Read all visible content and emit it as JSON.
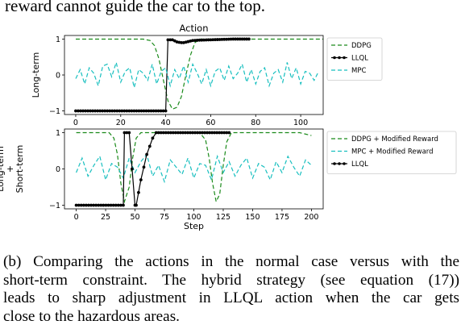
{
  "top_text": "reward cannot guide the car to the top.",
  "caption": {
    "lines": [
      "(b) Comparing the actions in the normal case versus with the",
      "short-term constraint. The hybrid strategy (see equation (17))",
      "leads to sharp adjustment in LLQL action when the car gets",
      "close to the hazardous areas."
    ]
  },
  "colors": {
    "ddpg": "#1a8a1a",
    "llql": "#000000",
    "mpc": "#17bfbf"
  },
  "chart_data": [
    {
      "type": "line",
      "title": "Action",
      "ylabel": "Long-term",
      "xlabel": "",
      "xlim": [
        -5,
        110
      ],
      "ylim": [
        -1.1,
        1.1
      ],
      "xticks": [
        0,
        20,
        40,
        60,
        80,
        100
      ],
      "yticks": [
        -1,
        0,
        1
      ],
      "legend_position": "right",
      "series": [
        {
          "name": "DDPG",
          "style": "dashed",
          "color": "#1a8a1a",
          "x": [
            0,
            30,
            33,
            35,
            37,
            39,
            41,
            43,
            45,
            47,
            49,
            51,
            53,
            55,
            110
          ],
          "y": [
            1,
            1,
            0.96,
            0.82,
            0.45,
            -0.15,
            -0.72,
            -0.95,
            -0.9,
            -0.6,
            0.0,
            0.55,
            0.9,
            1,
            1
          ]
        },
        {
          "name": "LLQL",
          "style": "dot-line",
          "color": "#000000",
          "x": [
            0,
            40,
            41,
            43,
            45,
            47,
            48,
            50,
            52,
            55,
            60,
            65,
            70,
            75,
            77
          ],
          "y": [
            -1,
            -1,
            0.98,
            0.98,
            0.92,
            0.9,
            0.9,
            0.93,
            0.96,
            0.97,
            0.98,
            0.99,
            1,
            1,
            1
          ]
        },
        {
          "name": "MPC",
          "style": "dashed",
          "color": "#17bfbf",
          "x": [
            0,
            2,
            4,
            6,
            8,
            10,
            12,
            14,
            16,
            18,
            20,
            22,
            24,
            26,
            28,
            30,
            32,
            34,
            36,
            38,
            40,
            42,
            44,
            46,
            48,
            50,
            52,
            54,
            56,
            58,
            60,
            62,
            64,
            66,
            68,
            70,
            72,
            74,
            76,
            78,
            80,
            82,
            84,
            86,
            88,
            90,
            92,
            94,
            96,
            98,
            100,
            102,
            104,
            106,
            108
          ],
          "y": [
            -0.1,
            0.15,
            -0.25,
            0.2,
            0.05,
            -0.3,
            0.25,
            0.3,
            -0.05,
            0.35,
            -0.2,
            0.1,
            0.2,
            -0.35,
            0.15,
            0.05,
            -0.15,
            0.3,
            -0.25,
            0.1,
            0.2,
            -0.3,
            0.15,
            -0.1,
            0.25,
            -0.2,
            0.3,
            0.05,
            -0.25,
            0.15,
            -0.3,
            0.1,
            0.2,
            -0.15,
            0.25,
            -0.1,
            0.05,
            0.3,
            -0.2,
            0.15,
            -0.25,
            0.1,
            0.2,
            -0.3,
            0.05,
            0.15,
            -0.2,
            0.35,
            -0.1,
            0.2,
            -0.25,
            0.1,
            0.05,
            -0.15,
            0.1
          ]
        }
      ]
    },
    {
      "type": "line",
      "ylabel": "Long-term + Short-term",
      "xlabel": "Step",
      "xlim": [
        -10,
        210
      ],
      "ylim": [
        -1.1,
        1.1
      ],
      "xticks": [
        0,
        25,
        50,
        75,
        100,
        125,
        150,
        175,
        200
      ],
      "yticks": [
        -1,
        0,
        1
      ],
      "legend_position": "right",
      "series": [
        {
          "name": "DDPG + Modified Reward",
          "style": "dashed",
          "color": "#1a8a1a",
          "x": [
            0,
            28,
            32,
            35,
            38,
            41,
            45,
            48,
            51,
            55,
            105,
            110,
            113,
            116,
            119,
            122,
            125,
            128,
            132,
            190,
            200
          ],
          "y": [
            1,
            1,
            0.85,
            0.4,
            -0.4,
            -0.9,
            -0.5,
            0.3,
            0.85,
            1,
            1,
            0.8,
            0.3,
            -0.4,
            -0.9,
            -0.7,
            0.1,
            0.75,
            1,
            1,
            0.92
          ]
        },
        {
          "name": "MPC + Modified Reward",
          "style": "dashed",
          "color": "#17bfbf",
          "x": [
            0,
            5,
            10,
            15,
            20,
            25,
            30,
            35,
            40,
            45,
            50,
            55,
            60,
            65,
            70,
            75,
            80,
            85,
            90,
            95,
            100,
            105,
            110,
            115,
            120,
            125,
            130,
            135,
            140,
            145,
            150,
            155,
            160,
            165,
            170,
            175,
            180,
            185,
            190,
            195,
            200
          ],
          "y": [
            -0.1,
            0.3,
            -0.2,
            0.1,
            0.35,
            -0.3,
            0.15,
            0.05,
            -0.25,
            0.3,
            -0.1,
            0.2,
            0.4,
            -0.2,
            0.1,
            -0.35,
            0.25,
            0.05,
            -0.15,
            0.3,
            -0.25,
            0.15,
            0.1,
            -0.3,
            0.35,
            -0.1,
            0.2,
            -0.2,
            0.1,
            0.3,
            -0.25,
            0.15,
            0.05,
            -0.3,
            0.2,
            -0.1,
            0.35,
            0.05,
            -0.2,
            0.25,
            0.1
          ]
        },
        {
          "name": "LLQL",
          "style": "dot-line",
          "color": "#000000",
          "x": [
            0,
            40,
            41,
            45,
            50,
            51,
            55,
            60,
            65,
            68,
            70,
            130
          ],
          "y": [
            -1,
            -1,
            1,
            1,
            -1,
            -1,
            -0.3,
            0.4,
            0.85,
            1,
            1,
            1
          ]
        }
      ]
    }
  ]
}
